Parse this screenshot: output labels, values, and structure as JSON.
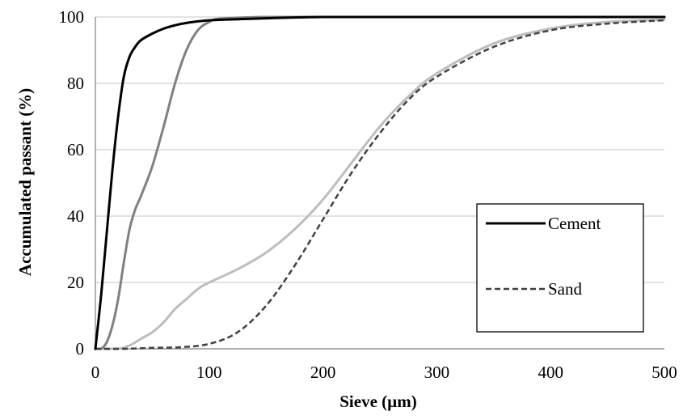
{
  "chart_data": {
    "type": "line",
    "title": "",
    "xlabel": "Sieve (µm)",
    "ylabel": "Accumulated passant (%)",
    "xlim": [
      0,
      500
    ],
    "ylim": [
      0,
      100
    ],
    "xticks": [
      "0",
      "100",
      "200",
      "300",
      "400",
      "500"
    ],
    "yticks": [
      "0",
      "20",
      "40",
      "60",
      "80",
      "100"
    ],
    "grid": "horizontal",
    "legend_position": "right-center",
    "series": [
      {
        "name": "Cement",
        "color": "#000000",
        "dash": "solid",
        "x": [
          0,
          5,
          10,
          15,
          20,
          25,
          30,
          35,
          40,
          50,
          60,
          70,
          80,
          100,
          150,
          200,
          300,
          500
        ],
        "y": [
          0,
          16,
          35,
          54,
          70,
          82,
          88,
          91,
          93,
          95,
          96.5,
          97.5,
          98.2,
          99,
          99.6,
          100,
          100,
          100
        ]
      },
      {
        "name": "",
        "color": "#808080",
        "dash": "solid",
        "x": [
          0,
          5,
          10,
          15,
          20,
          25,
          30,
          35,
          40,
          50,
          60,
          70,
          80,
          90,
          100,
          110,
          150,
          200,
          300,
          500
        ],
        "y": [
          0,
          0,
          2,
          7,
          15,
          26,
          36,
          42,
          46,
          55,
          67,
          80,
          90,
          96,
          98.5,
          99.5,
          100,
          100,
          100,
          100
        ]
      },
      {
        "name": "",
        "color": "#bdbdbd",
        "dash": "solid",
        "x": [
          0,
          10,
          20,
          30,
          40,
          50,
          60,
          70,
          80,
          90,
          100,
          125,
          150,
          175,
          200,
          225,
          250,
          275,
          300,
          350,
          400,
          450,
          500
        ],
        "y": [
          0,
          0,
          0,
          1,
          3,
          5,
          8,
          12,
          15,
          18,
          20,
          24,
          29,
          36,
          45,
          56,
          67,
          76,
          83,
          92,
          96.5,
          98.5,
          99.2
        ]
      },
      {
        "name": "Sand",
        "color": "#404040",
        "dash": "dashed",
        "x": [
          0,
          25,
          50,
          75,
          100,
          125,
          150,
          175,
          200,
          225,
          250,
          275,
          300,
          350,
          400,
          450,
          500
        ],
        "y": [
          0,
          0,
          0.3,
          0.5,
          1.5,
          5,
          13,
          25,
          39,
          53,
          65,
          75,
          82,
          91,
          96,
          98,
          99
        ]
      }
    ]
  }
}
